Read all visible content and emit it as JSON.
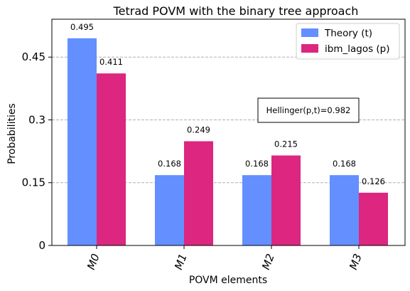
{
  "chart_data": {
    "type": "bar",
    "title": "Tetrad POVM with the binary tree approach",
    "xlabel": "POVM elements",
    "ylabel": "Probabilities",
    "categories": [
      "M0",
      "M1",
      "M2",
      "M3"
    ],
    "series": [
      {
        "name": "Theory (t)",
        "color": "#648fff",
        "values": [
          0.495,
          0.168,
          0.168,
          0.168
        ],
        "labels": [
          "0.495",
          "0.168",
          "0.168",
          "0.168"
        ]
      },
      {
        "name": "ibm_lagos (p)",
        "color": "#dc267f",
        "values": [
          0.411,
          0.249,
          0.215,
          0.126
        ],
        "labels": [
          "0.411",
          "0.249",
          "0.215",
          "0.126"
        ]
      }
    ],
    "ylim": [
      0,
      0.5405
    ],
    "yticks": [
      0,
      0.15,
      0.3,
      0.45
    ],
    "ytick_labels": [
      "0",
      "0.15",
      "0.3",
      "0.45"
    ],
    "grid": "horizontal-dashed",
    "legend_position": "top-right",
    "annotation": "Hellinger(p,t)=0.982"
  }
}
